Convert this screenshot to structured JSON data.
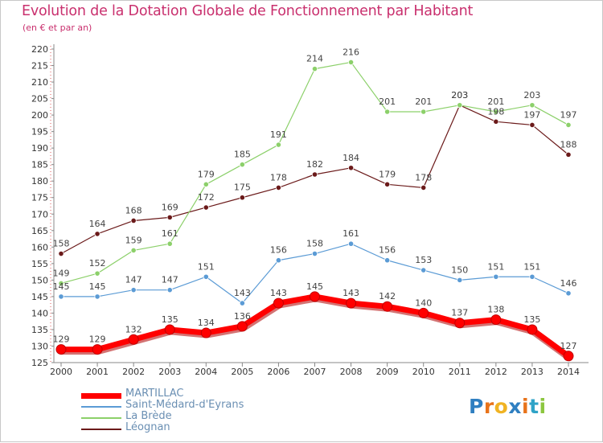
{
  "title": "Evolution de la Dotation Globale de Fonctionnement par Habitant",
  "subtitle": "(en € et par an)",
  "logo": {
    "letters": [
      "P",
      "r",
      "o",
      "x",
      "i",
      "t",
      "i"
    ],
    "colors": [
      "#2f7fc1",
      "#e8731a",
      "#f0b323",
      "#2f7fc1",
      "#e8731a",
      "#2fa3c7",
      "#8cc63f"
    ]
  },
  "chart_data": {
    "type": "line",
    "title": "Evolution de la Dotation Globale de Fonctionnement par Habitant",
    "subtitle": "(en € et par an)",
    "xlabel": "",
    "ylabel": "",
    "ylim": [
      125,
      220
    ],
    "ytick_step": 5,
    "grid": false,
    "legend_position": "bottom-left",
    "x": [
      "2000",
      "2001",
      "2002",
      "2003",
      "2004",
      "2005",
      "2006",
      "2007",
      "2008",
      "2009",
      "2010",
      "2011",
      "2012",
      "2013",
      "2014"
    ],
    "series": [
      {
        "name": "MARTILLAC",
        "color": "#ff0000",
        "values": [
          129,
          129,
          132,
          135,
          134,
          136,
          143,
          145,
          143,
          142,
          140,
          137,
          138,
          135,
          127
        ]
      },
      {
        "name": "Saint-Médard-d'Eyrans",
        "color": "#5b9bd5",
        "values": [
          145,
          145,
          147,
          147,
          151,
          143,
          156,
          158,
          161,
          156,
          153,
          150,
          151,
          151,
          146
        ]
      },
      {
        "name": "La Brède",
        "color": "#8cd06a",
        "values": [
          149,
          152,
          159,
          161,
          179,
          185,
          191,
          214,
          216,
          201,
          201,
          203,
          201,
          203,
          197
        ]
      },
      {
        "name": "Léognan",
        "color": "#6b1a1a",
        "values": [
          158,
          164,
          168,
          169,
          172,
          175,
          178,
          182,
          184,
          179,
          178,
          203,
          198,
          197,
          188
        ]
      }
    ]
  }
}
